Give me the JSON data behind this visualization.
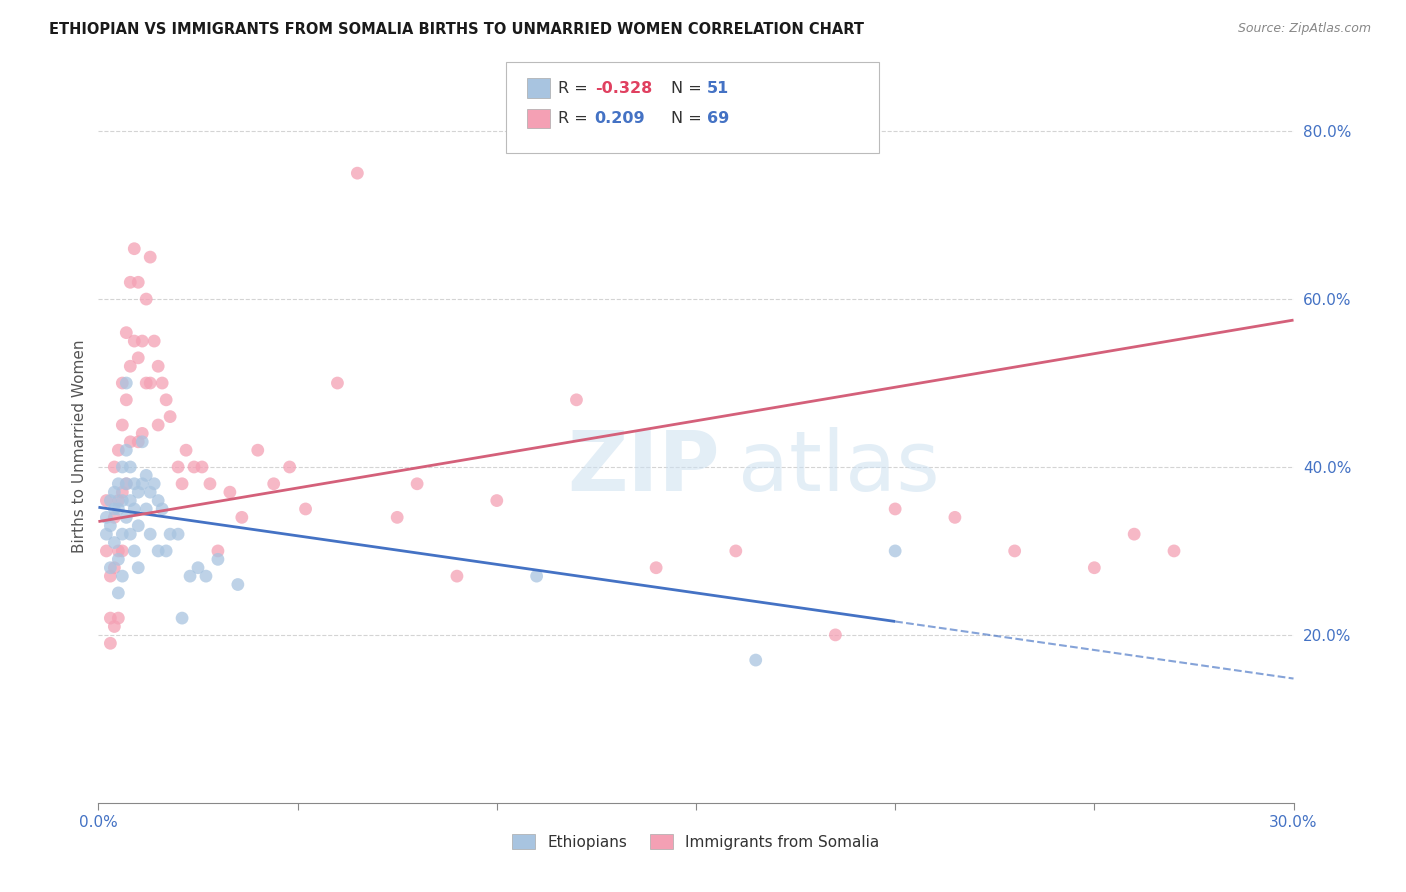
{
  "title": "ETHIOPIAN VS IMMIGRANTS FROM SOMALIA BIRTHS TO UNMARRIED WOMEN CORRELATION CHART",
  "source": "Source: ZipAtlas.com",
  "ylabel": "Births to Unmarried Women",
  "xlim": [
    0.0,
    0.3
  ],
  "ylim": [
    0.0,
    0.85
  ],
  "background_color": "#ffffff",
  "grid_color": "#d0d0d0",
  "ethiopian_color": "#a8c4e0",
  "somalia_color": "#f4a0b4",
  "trendline_ethiopian_color": "#4472c4",
  "trendline_somalia_color": "#d4607a",
  "legend_R_ethiopian": "-0.328",
  "legend_N_ethiopian": "51",
  "legend_R_somalia": "0.209",
  "legend_N_somalia": "69",
  "trendline_eth_y0": 0.352,
  "trendline_eth_y1": 0.148,
  "trendline_eth_solid_end": 0.2,
  "trendline_som_y0": 0.335,
  "trendline_som_y1": 0.575,
  "ethiopian_x": [
    0.002,
    0.002,
    0.003,
    0.003,
    0.003,
    0.004,
    0.004,
    0.004,
    0.005,
    0.005,
    0.005,
    0.005,
    0.006,
    0.006,
    0.006,
    0.006,
    0.007,
    0.007,
    0.007,
    0.007,
    0.008,
    0.008,
    0.008,
    0.009,
    0.009,
    0.009,
    0.01,
    0.01,
    0.01,
    0.011,
    0.011,
    0.012,
    0.012,
    0.013,
    0.013,
    0.014,
    0.015,
    0.015,
    0.016,
    0.017,
    0.018,
    0.02,
    0.021,
    0.023,
    0.025,
    0.027,
    0.03,
    0.035,
    0.11,
    0.165,
    0.2
  ],
  "ethiopian_y": [
    0.34,
    0.32,
    0.36,
    0.33,
    0.28,
    0.37,
    0.31,
    0.35,
    0.38,
    0.35,
    0.29,
    0.25,
    0.4,
    0.36,
    0.32,
    0.27,
    0.42,
    0.5,
    0.38,
    0.34,
    0.4,
    0.36,
    0.32,
    0.38,
    0.35,
    0.3,
    0.37,
    0.33,
    0.28,
    0.43,
    0.38,
    0.39,
    0.35,
    0.37,
    0.32,
    0.38,
    0.36,
    0.3,
    0.35,
    0.3,
    0.32,
    0.32,
    0.22,
    0.27,
    0.28,
    0.27,
    0.29,
    0.26,
    0.27,
    0.17,
    0.3
  ],
  "somalia_x": [
    0.002,
    0.002,
    0.003,
    0.003,
    0.003,
    0.004,
    0.004,
    0.004,
    0.004,
    0.005,
    0.005,
    0.005,
    0.005,
    0.006,
    0.006,
    0.006,
    0.006,
    0.007,
    0.007,
    0.007,
    0.008,
    0.008,
    0.008,
    0.009,
    0.009,
    0.01,
    0.01,
    0.01,
    0.011,
    0.011,
    0.012,
    0.012,
    0.013,
    0.013,
    0.014,
    0.015,
    0.015,
    0.016,
    0.017,
    0.018,
    0.02,
    0.021,
    0.022,
    0.024,
    0.026,
    0.028,
    0.03,
    0.033,
    0.036,
    0.04,
    0.044,
    0.048,
    0.052,
    0.06,
    0.065,
    0.075,
    0.08,
    0.09,
    0.1,
    0.12,
    0.14,
    0.16,
    0.185,
    0.2,
    0.215,
    0.23,
    0.25,
    0.26,
    0.27
  ],
  "somalia_y": [
    0.36,
    0.3,
    0.22,
    0.19,
    0.27,
    0.4,
    0.34,
    0.28,
    0.21,
    0.42,
    0.36,
    0.3,
    0.22,
    0.5,
    0.45,
    0.37,
    0.3,
    0.56,
    0.48,
    0.38,
    0.62,
    0.52,
    0.43,
    0.66,
    0.55,
    0.62,
    0.53,
    0.43,
    0.55,
    0.44,
    0.6,
    0.5,
    0.65,
    0.5,
    0.55,
    0.52,
    0.45,
    0.5,
    0.48,
    0.46,
    0.4,
    0.38,
    0.42,
    0.4,
    0.4,
    0.38,
    0.3,
    0.37,
    0.34,
    0.42,
    0.38,
    0.4,
    0.35,
    0.5,
    0.75,
    0.34,
    0.38,
    0.27,
    0.36,
    0.48,
    0.28,
    0.3,
    0.2,
    0.35,
    0.34,
    0.3,
    0.28,
    0.32,
    0.3
  ]
}
